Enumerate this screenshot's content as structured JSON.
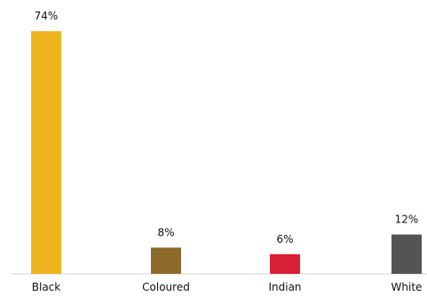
{
  "chart_data": {
    "type": "bar",
    "title": "",
    "xlabel": "",
    "ylabel": "",
    "categories": [
      "Black",
      "Coloured",
      "Indian",
      "White"
    ],
    "values": [
      74,
      8,
      6,
      12
    ],
    "value_labels": [
      "74%",
      "8%",
      "6%",
      "12%"
    ],
    "colors": [
      "#EDB41F",
      "#8E6A2A",
      "#D91F35",
      "#545454"
    ],
    "ylim": [
      0,
      80
    ],
    "grid": false,
    "legend": "none"
  }
}
